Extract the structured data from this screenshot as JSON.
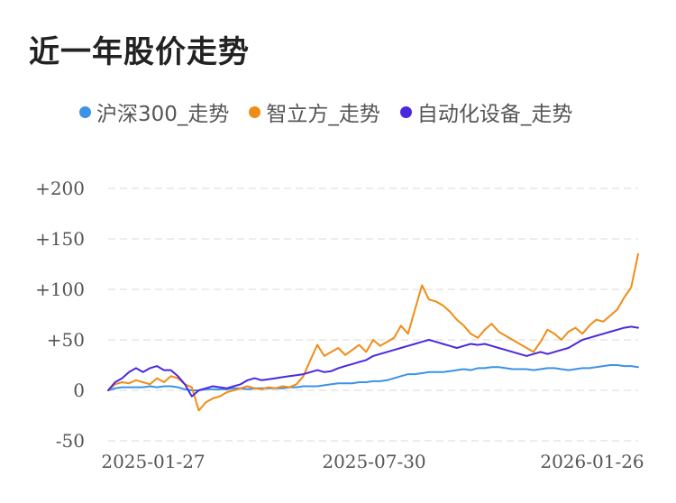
{
  "chart_data": {
    "type": "line",
    "title": "近一年股价走势",
    "y_ticks": [
      "+200",
      "+150",
      "+100",
      "+50",
      "0",
      "-50"
    ],
    "x_ticks": [
      "2025-01-27",
      "2025-07-30",
      "2026-01-26"
    ],
    "ylim": [
      -50,
      200
    ],
    "grid": true,
    "legend_position": "top",
    "series": [
      {
        "name": "沪深300_走势",
        "color": "#3c92e6",
        "values": [
          0,
          2,
          3,
          3,
          3,
          3,
          4,
          3,
          4,
          4,
          3,
          1,
          0,
          0,
          1,
          1,
          1,
          1,
          2,
          2,
          1,
          2,
          2,
          2,
          2,
          2,
          3,
          3,
          4,
          4,
          4,
          5,
          6,
          7,
          7,
          7,
          8,
          8,
          9,
          9,
          10,
          12,
          14,
          16,
          16,
          17,
          18,
          18,
          18,
          19,
          20,
          21,
          20,
          22,
          22,
          23,
          23,
          22,
          21,
          21,
          21,
          20,
          21,
          22,
          22,
          21,
          20,
          21,
          22,
          22,
          23,
          24,
          25,
          25,
          24,
          24,
          23
        ]
      },
      {
        "name": "智立方_走势",
        "color": "#f08c16",
        "values": [
          0,
          6,
          8,
          7,
          10,
          8,
          6,
          12,
          8,
          14,
          12,
          6,
          3,
          -20,
          -12,
          -8,
          -6,
          -2,
          0,
          2,
          4,
          2,
          1,
          3,
          2,
          4,
          3,
          6,
          14,
          30,
          45,
          34,
          38,
          42,
          35,
          40,
          45,
          38,
          50,
          44,
          48,
          52,
          64,
          56,
          80,
          104,
          90,
          88,
          84,
          78,
          70,
          64,
          56,
          52,
          60,
          66,
          58,
          54,
          50,
          46,
          42,
          38,
          48,
          60,
          56,
          50,
          58,
          62,
          56,
          64,
          70,
          68,
          74,
          80,
          92,
          102,
          135
        ]
      },
      {
        "name": "自动化设备_走势",
        "color": "#4b28e0",
        "values": [
          0,
          8,
          12,
          18,
          22,
          18,
          22,
          24,
          20,
          20,
          14,
          6,
          -6,
          0,
          2,
          4,
          3,
          2,
          4,
          6,
          10,
          12,
          10,
          11,
          12,
          13,
          14,
          15,
          16,
          18,
          20,
          18,
          19,
          22,
          24,
          26,
          28,
          30,
          34,
          36,
          38,
          40,
          42,
          44,
          46,
          48,
          50,
          48,
          46,
          44,
          42,
          44,
          46,
          45,
          46,
          44,
          42,
          40,
          38,
          36,
          34,
          36,
          38,
          36,
          38,
          40,
          42,
          46,
          50,
          52,
          54,
          56,
          58,
          60,
          62,
          63,
          62
        ]
      }
    ]
  }
}
